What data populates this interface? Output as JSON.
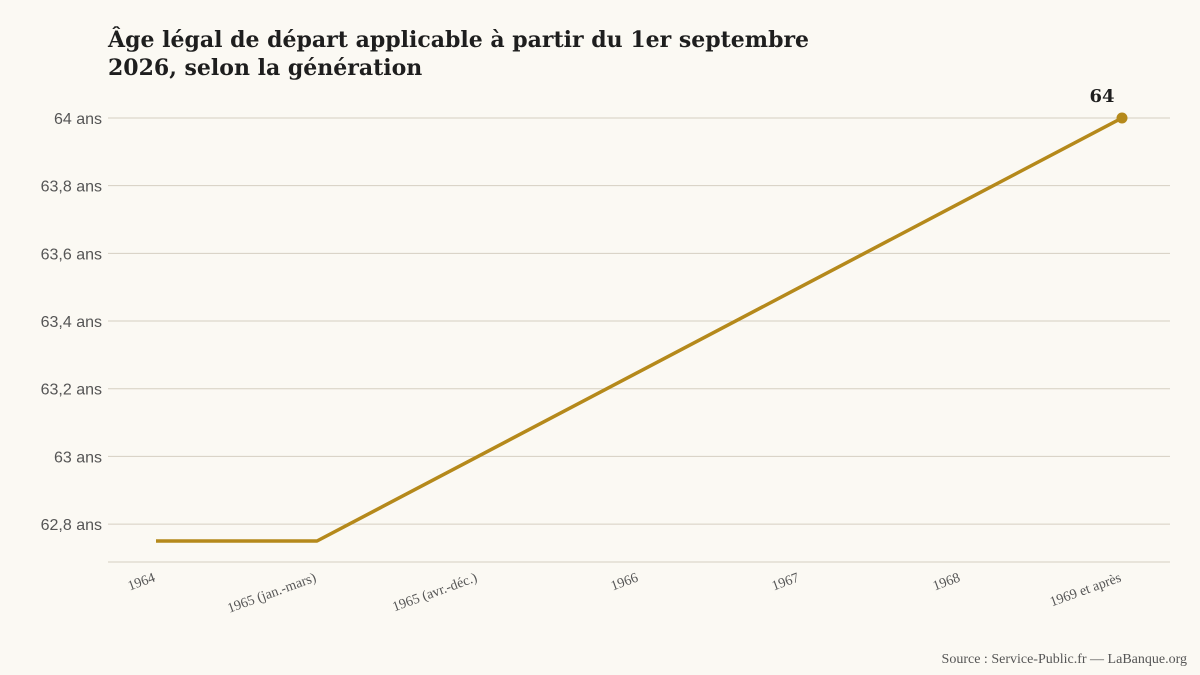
{
  "chart_data": {
    "type": "line",
    "title": "Âge légal de départ applicable à partir du 1er septembre 2026, selon la génération",
    "xlabel": "",
    "ylabel": "",
    "categories": [
      "1964",
      "1965 (jan.-mars)",
      "1965 (avr.-déc.)",
      "1966",
      "1967",
      "1968",
      "1969 et après"
    ],
    "values": [
      62.75,
      62.75,
      63.0,
      63.25,
      63.5,
      63.75,
      64.0
    ],
    "ylim": [
      62.68,
      64.0
    ],
    "yticks": [
      62.8,
      63,
      63.2,
      63.4,
      63.6,
      63.8,
      64
    ],
    "ytick_labels": [
      "62,8 ans",
      "63 ans",
      "63,2 ans",
      "63,4 ans",
      "63,6 ans",
      "63,8 ans",
      "64 ans"
    ],
    "end_label": "64",
    "grid": true,
    "legend": "none",
    "line_color": "#b5891b",
    "grid_color": "#d6cfc2"
  },
  "footer": {
    "source": "Source : Service-Public.fr — LaBanque.org"
  }
}
